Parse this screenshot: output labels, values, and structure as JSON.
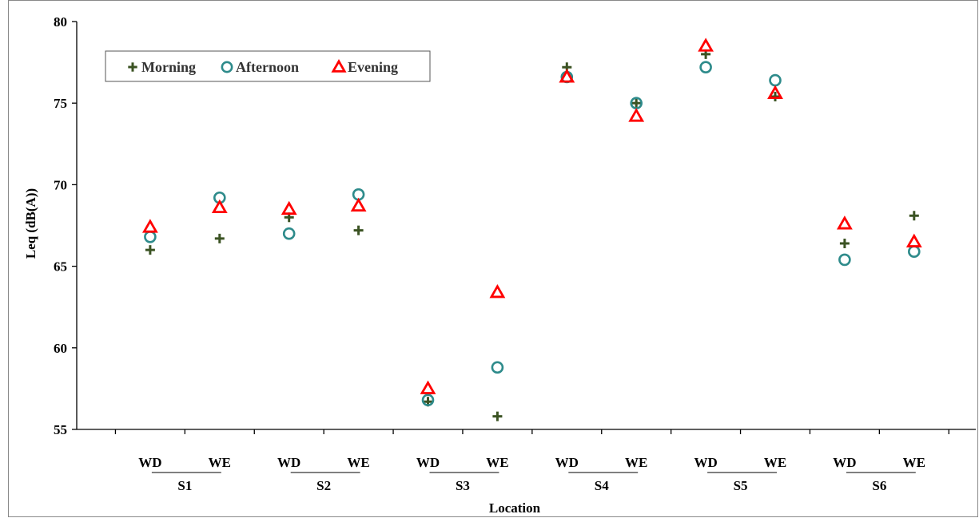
{
  "chart_data": {
    "type": "scatter",
    "title": "",
    "xlabel": "Location",
    "ylabel": "Leq (dB(A))",
    "ylim": [
      55,
      80
    ],
    "yticks": [
      55,
      60,
      65,
      70,
      75,
      80
    ],
    "grid": false,
    "legend_position": "top-left",
    "categories": [
      "WD",
      "WE",
      "WD",
      "WE",
      "WD",
      "WE",
      "WD",
      "WE",
      "WD",
      "WE",
      "WD",
      "WE"
    ],
    "groups": [
      "S1",
      "S2",
      "S3",
      "S4",
      "S5",
      "S6"
    ],
    "series": [
      {
        "name": "Morning",
        "marker": "plus",
        "color": "#3b5323",
        "values": [
          66.0,
          66.7,
          68.0,
          67.2,
          56.7,
          55.8,
          77.2,
          75.0,
          78.0,
          75.4,
          66.4,
          68.1
        ]
      },
      {
        "name": "Afternoon",
        "marker": "circle",
        "color": "#2e8b8b",
        "values": [
          66.8,
          69.2,
          67.0,
          69.4,
          56.8,
          58.8,
          76.6,
          75.0,
          77.2,
          76.4,
          65.4,
          65.9
        ]
      },
      {
        "name": "Evening",
        "marker": "triangle",
        "color": "#ff0000",
        "values": [
          67.4,
          68.6,
          68.5,
          68.7,
          57.5,
          63.4,
          76.6,
          74.2,
          78.5,
          75.6,
          67.6,
          66.5
        ]
      }
    ]
  }
}
